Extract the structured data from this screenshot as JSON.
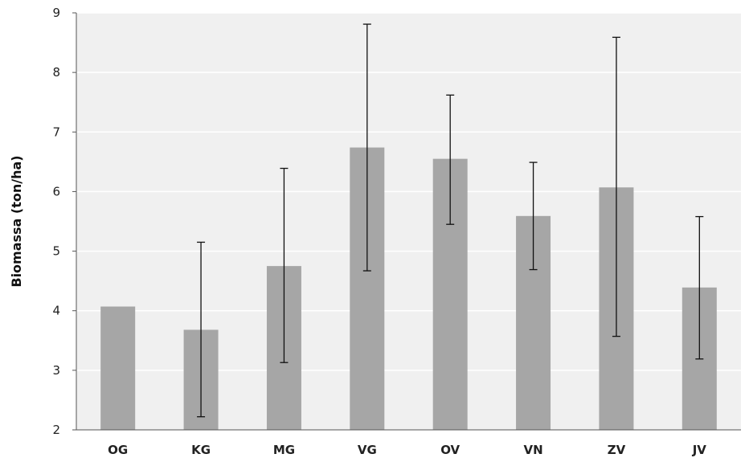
{
  "chart_data": {
    "type": "bar",
    "title": "",
    "xlabel": "",
    "ylabel": "Biomassa (ton/ha)",
    "categories": [
      "OG",
      "KG",
      "MG",
      "VG",
      "OV",
      "VN",
      "ZV",
      "JV"
    ],
    "values": [
      4.07,
      3.68,
      4.75,
      6.74,
      6.55,
      5.59,
      6.07,
      4.39
    ],
    "error_low": [
      null,
      2.22,
      3.13,
      4.67,
      5.45,
      4.69,
      3.57,
      3.19
    ],
    "error_high": [
      null,
      5.15,
      6.39,
      8.81,
      7.62,
      6.49,
      8.59,
      5.58
    ],
    "ylim": [
      2,
      9
    ],
    "yticks": [
      "2",
      "3",
      "4",
      "5",
      "6",
      "7",
      "8",
      "9"
    ],
    "grid": true,
    "legend": "none",
    "colors": {
      "bar": "#a6a6a6",
      "plot_background": "#f0f0f0",
      "gridline": "#ffffff",
      "error_bar": "#111111"
    }
  }
}
